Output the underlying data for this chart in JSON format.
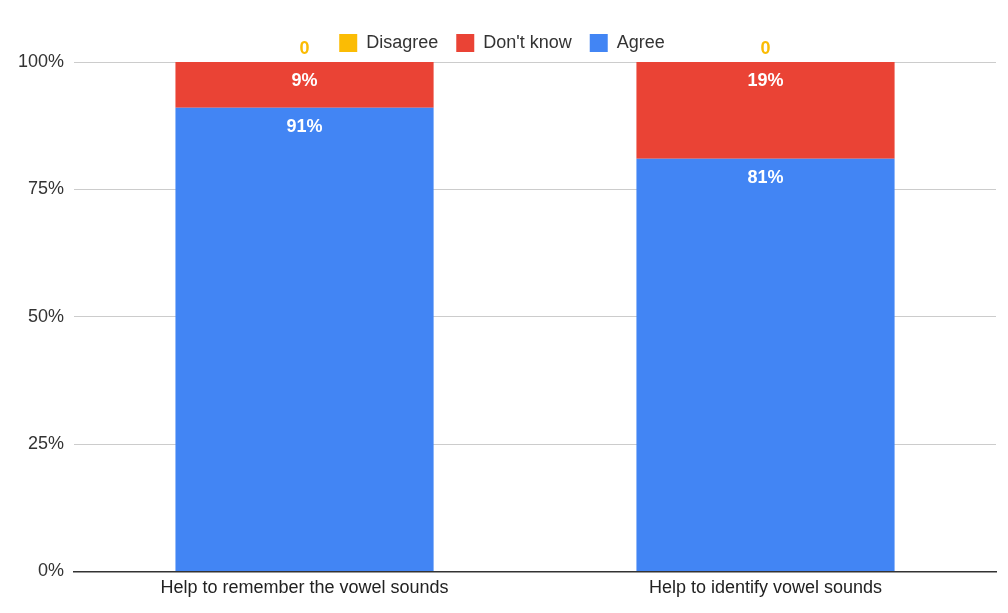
{
  "chart_data": {
    "type": "bar",
    "stacked": true,
    "categories": [
      "Help to remember the vowel sounds",
      "Help to identify vowel sounds"
    ],
    "series": [
      {
        "name": "Agree",
        "color": "#4285f4",
        "values": [
          91,
          81
        ],
        "value_labels": [
          "91%",
          "81%"
        ]
      },
      {
        "name": "Don't know",
        "color": "#ea4335",
        "values": [
          9,
          19
        ],
        "value_labels": [
          "9%",
          "19%"
        ]
      },
      {
        "name": "Disagree",
        "color": "#fbbc04",
        "values": [
          0,
          0
        ],
        "value_labels": [
          "0",
          "0"
        ]
      }
    ],
    "ylim": [
      0,
      100
    ],
    "yticks": [
      {
        "value": 0,
        "label": "0%"
      },
      {
        "value": 25,
        "label": "25%"
      },
      {
        "value": 50,
        "label": "50%"
      },
      {
        "value": 75,
        "label": "75%"
      },
      {
        "value": 100,
        "label": "100%"
      }
    ],
    "grid": "y",
    "legend": "top"
  }
}
